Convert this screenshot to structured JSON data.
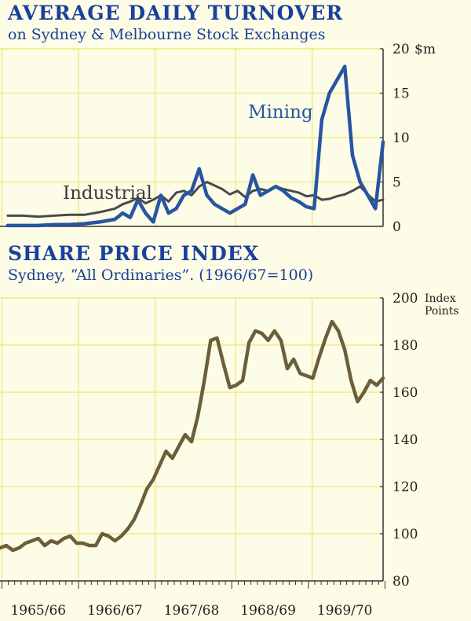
{
  "chart_data": [
    {
      "type": "line",
      "title": "AVERAGE DAILY TURNOVER",
      "subtitle": "on Sydney & Melbourne Stock Exchanges",
      "unit": "$m",
      "ylim": [
        0,
        20
      ],
      "yticks": [
        0,
        5,
        10,
        15,
        20
      ],
      "x_periods": [
        "1965/66",
        "1966/67",
        "1967/68",
        "1968/69",
        "1969/70"
      ],
      "x_domain": [
        0,
        5
      ],
      "grid": true,
      "colors": {
        "Mining": "#2855a3",
        "Industrial": "#4a4a4a"
      },
      "series": [
        {
          "name": "Industrial",
          "x": [
            0.1,
            0.3,
            0.5,
            0.7,
            0.9,
            1.1,
            1.3,
            1.5,
            1.6,
            1.7,
            1.8,
            1.9,
            2.0,
            2.1,
            2.2,
            2.3,
            2.4,
            2.5,
            2.6,
            2.7,
            2.8,
            2.9,
            3.0,
            3.1,
            3.2,
            3.3,
            3.4,
            3.5,
            3.6,
            3.7,
            3.8,
            3.9,
            4.0,
            4.1,
            4.2,
            4.3,
            4.4,
            4.5,
            4.6,
            4.7,
            4.8,
            4.9,
            5.0
          ],
          "values": [
            1.2,
            1.2,
            1.1,
            1.2,
            1.3,
            1.3,
            1.6,
            2.0,
            2.5,
            2.8,
            3.2,
            2.6,
            3.0,
            3.5,
            2.8,
            3.8,
            4.0,
            3.5,
            4.5,
            5.0,
            4.6,
            4.2,
            3.6,
            4.0,
            3.3,
            4.0,
            4.2,
            4.0,
            4.5,
            4.2,
            4.0,
            3.8,
            3.4,
            3.5,
            3.0,
            3.1,
            3.4,
            3.6,
            4.0,
            4.5,
            3.6,
            2.8,
            3.0
          ]
        },
        {
          "name": "Mining",
          "x": [
            0.1,
            0.3,
            0.5,
            0.7,
            0.9,
            1.1,
            1.3,
            1.5,
            1.6,
            1.7,
            1.8,
            1.9,
            2.0,
            2.1,
            2.2,
            2.3,
            2.4,
            2.5,
            2.6,
            2.7,
            2.8,
            2.9,
            3.0,
            3.1,
            3.2,
            3.3,
            3.4,
            3.5,
            3.6,
            3.7,
            3.8,
            3.9,
            4.0,
            4.1,
            4.2,
            4.3,
            4.4,
            4.5,
            4.6,
            4.7,
            4.8,
            4.9,
            5.0
          ],
          "values": [
            0.1,
            0.1,
            0.1,
            0.2,
            0.2,
            0.3,
            0.5,
            0.8,
            1.5,
            1.0,
            3.0,
            1.5,
            0.5,
            3.5,
            1.5,
            2.0,
            3.5,
            4.0,
            6.5,
            3.5,
            2.5,
            2.0,
            1.5,
            2.0,
            2.5,
            5.8,
            3.5,
            4.0,
            4.5,
            4.0,
            3.2,
            2.8,
            2.2,
            2.0,
            12.0,
            15.0,
            16.5,
            18.0,
            8.0,
            5.0,
            3.5,
            2.0,
            9.5
          ]
        }
      ]
    },
    {
      "type": "line",
      "title": "SHARE PRICE INDEX",
      "subtitle": "Sydney, “All Ordinaries”. (1966/67=100)",
      "unit_line1": "Index",
      "unit_line2": "Points",
      "ylim": [
        80,
        200
      ],
      "yticks": [
        80,
        100,
        120,
        140,
        160,
        180,
        200
      ],
      "x_periods": [
        "1965/66",
        "1966/67",
        "1967/68",
        "1968/69",
        "1969/70"
      ],
      "x_domain": [
        0,
        5
      ],
      "grid": true,
      "colors": {
        "line": "#6a5f3a"
      },
      "series": [
        {
          "x": [
            0.0,
            0.083,
            0.167,
            0.25,
            0.333,
            0.417,
            0.5,
            0.583,
            0.667,
            0.75,
            0.833,
            0.917,
            1.0,
            1.083,
            1.167,
            1.25,
            1.333,
            1.417,
            1.5,
            1.583,
            1.667,
            1.75,
            1.833,
            1.917,
            2.0,
            2.083,
            2.167,
            2.25,
            2.333,
            2.417,
            2.5,
            2.583,
            2.667,
            2.75,
            2.833,
            2.917,
            3.0,
            3.083,
            3.167,
            3.25,
            3.333,
            3.417,
            3.5,
            3.583,
            3.667,
            3.75,
            3.833,
            3.917,
            4.0,
            4.083,
            4.167,
            4.25,
            4.333,
            4.417,
            4.5,
            4.583,
            4.667,
            4.75,
            4.833,
            4.917,
            5.0
          ],
          "values": [
            94,
            95,
            93,
            94,
            96,
            97,
            98,
            95,
            97,
            96,
            98,
            99,
            96,
            96,
            95,
            95,
            100,
            99,
            97,
            99,
            102,
            106,
            112,
            119,
            123,
            129,
            135,
            132,
            137,
            142,
            139,
            150,
            165,
            182,
            183,
            172,
            162,
            163,
            165,
            181,
            186,
            185,
            182,
            186,
            182,
            170,
            174,
            168,
            167,
            166,
            175,
            183,
            190,
            186,
            178,
            165,
            156,
            160,
            165,
            163,
            166
          ]
        }
      ]
    }
  ]
}
